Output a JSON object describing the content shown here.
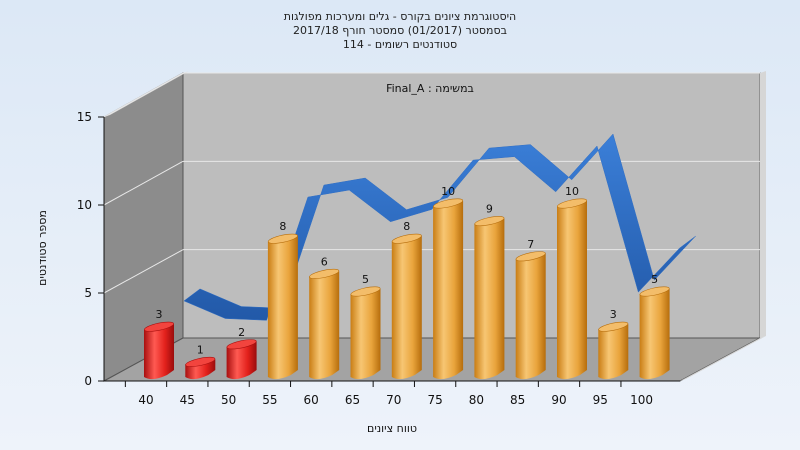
{
  "title": {
    "line1": "היסטוגרמת ציונים בקורס - גלים ומערכות מפולגות",
    "line2": "בסמסטר  (01/2017)  סמסטר חורף 2017/18",
    "line3": "סטודנטים רשומים - 114"
  },
  "chart_data": {
    "type": "bar",
    "title": "היסטוגרמת ציונים בקורס - גלים ומערכות מפולגות",
    "annotation": "במשימה : Final_A",
    "xlabel": "טווח ציונים",
    "ylabel": "מספר סטודנטים",
    "categories": [
      "40",
      "45",
      "50",
      "55",
      "60",
      "65",
      "70",
      "75",
      "80",
      "85",
      "90",
      "95",
      "100"
    ],
    "values": [
      3,
      1,
      2,
      8,
      6,
      5,
      8,
      10,
      9,
      7,
      10,
      3,
      5
    ],
    "bar_colors": [
      "#e8211e",
      "#e8211e",
      "#e8211e",
      "#e8a83a",
      "#e8a83a",
      "#e8a83a",
      "#e8a83a",
      "#e8a83a",
      "#e8a83a",
      "#e8a83a",
      "#e8a83a",
      "#e8a83a",
      "#e8a83a"
    ],
    "trend_line": {
      "color": "#2f6ec4",
      "values": [
        3.3,
        2.3,
        2.2,
        9.2,
        9.6,
        7.8,
        8.5,
        11.3,
        11.5,
        9.5,
        12.1,
        3.8,
        6.3
      ]
    },
    "yticks": [
      "0",
      "5",
      "10",
      "15"
    ],
    "ylim": [
      0,
      15
    ],
    "grid": true,
    "colors": {
      "wall": "#bdbdbd",
      "side_wall": "#8a8a8a",
      "floor": "#9a9a9a",
      "grid": "#e8e8e8"
    }
  }
}
